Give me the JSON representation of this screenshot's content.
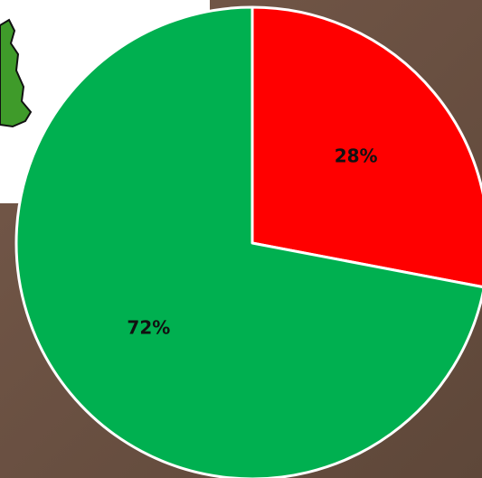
{
  "chart_data": {
    "type": "pie",
    "values": [
      28,
      72
    ],
    "value_labels": [
      "28%",
      "72%"
    ],
    "colors": [
      "#ff0000",
      "#00b050"
    ]
  }
}
